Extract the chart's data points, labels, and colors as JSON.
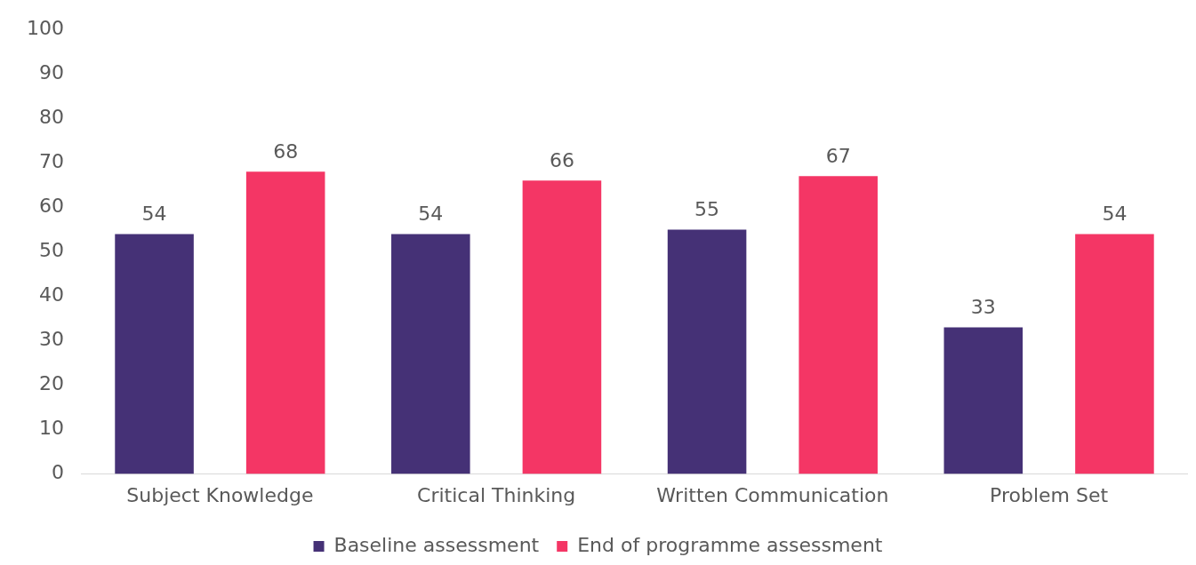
{
  "chart_data": {
    "type": "bar",
    "categories": [
      "Subject Knowledge",
      "Critical Thinking",
      "Written Communication",
      "Problem Set"
    ],
    "series": [
      {
        "name": "Baseline assessment",
        "color": "#453176",
        "values": [
          54,
          54,
          55,
          33
        ]
      },
      {
        "name": "End of programme assessment",
        "color": "#f43665",
        "values": [
          68,
          66,
          67,
          54
        ]
      }
    ],
    "ylim": [
      0,
      100
    ],
    "yticks": [
      0,
      10,
      20,
      30,
      40,
      50,
      60,
      70,
      80,
      90,
      100
    ],
    "grid": false,
    "legend": "bottom",
    "data_labels": true
  }
}
